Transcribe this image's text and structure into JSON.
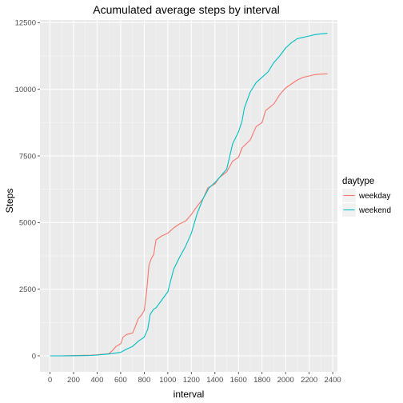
{
  "chart_data": {
    "type": "line",
    "title": "Acumulated average steps by interval",
    "xlabel": "interval",
    "ylabel": "Steps",
    "xlim": [
      -85,
      2440
    ],
    "ylim": [
      -600,
      12600
    ],
    "x_ticks": [
      0,
      200,
      400,
      600,
      800,
      1000,
      1200,
      1400,
      1600,
      1800,
      2000,
      2200,
      2400
    ],
    "y_ticks": [
      0,
      2500,
      5000,
      7500,
      10000,
      12500
    ],
    "grid": true,
    "legend": {
      "title": "daytype",
      "position": "right"
    },
    "series": [
      {
        "name": "weekday",
        "color": "#F8766D",
        "x": [
          0,
          100,
          200,
          300,
          350,
          400,
          450,
          500,
          530,
          560,
          600,
          620,
          650,
          700,
          720,
          750,
          780,
          800,
          820,
          840,
          860,
          880,
          900,
          950,
          1000,
          1050,
          1100,
          1150,
          1200,
          1230,
          1300,
          1340,
          1400,
          1440,
          1500,
          1550,
          1600,
          1630,
          1700,
          1750,
          1800,
          1830,
          1900,
          1950,
          2000,
          2050,
          2100,
          2150,
          2200,
          2250,
          2300,
          2355
        ],
        "y": [
          0,
          0,
          10,
          20,
          25,
          40,
          60,
          80,
          200,
          350,
          450,
          700,
          800,
          850,
          1050,
          1400,
          1550,
          1700,
          2400,
          3400,
          3650,
          3800,
          4350,
          4500,
          4600,
          4800,
          4950,
          5050,
          5300,
          5500,
          5900,
          6300,
          6450,
          6700,
          6900,
          7300,
          7450,
          7800,
          8100,
          8600,
          8750,
          9200,
          9450,
          9800,
          10050,
          10200,
          10350,
          10450,
          10500,
          10550,
          10570,
          10580
        ]
      },
      {
        "name": "weekend",
        "color": "#00BFC4",
        "x": [
          0,
          100,
          200,
          300,
          350,
          400,
          450,
          500,
          550,
          600,
          650,
          700,
          750,
          800,
          830,
          850,
          880,
          900,
          950,
          1000,
          1050,
          1100,
          1150,
          1200,
          1250,
          1300,
          1350,
          1400,
          1450,
          1500,
          1550,
          1600,
          1630,
          1650,
          1700,
          1750,
          1800,
          1850,
          1900,
          1950,
          2000,
          2050,
          2100,
          2150,
          2200,
          2250,
          2300,
          2355
        ],
        "y": [
          0,
          0,
          5,
          10,
          15,
          30,
          50,
          70,
          100,
          130,
          250,
          350,
          550,
          700,
          1000,
          1550,
          1750,
          1800,
          2100,
          2400,
          3250,
          3700,
          4100,
          4600,
          5350,
          5900,
          6300,
          6500,
          6750,
          7000,
          7950,
          8400,
          8800,
          9300,
          9900,
          10250,
          10450,
          10650,
          11000,
          11250,
          11550,
          11750,
          11900,
          11950,
          12000,
          12050,
          12080,
          12100
        ]
      }
    ]
  }
}
